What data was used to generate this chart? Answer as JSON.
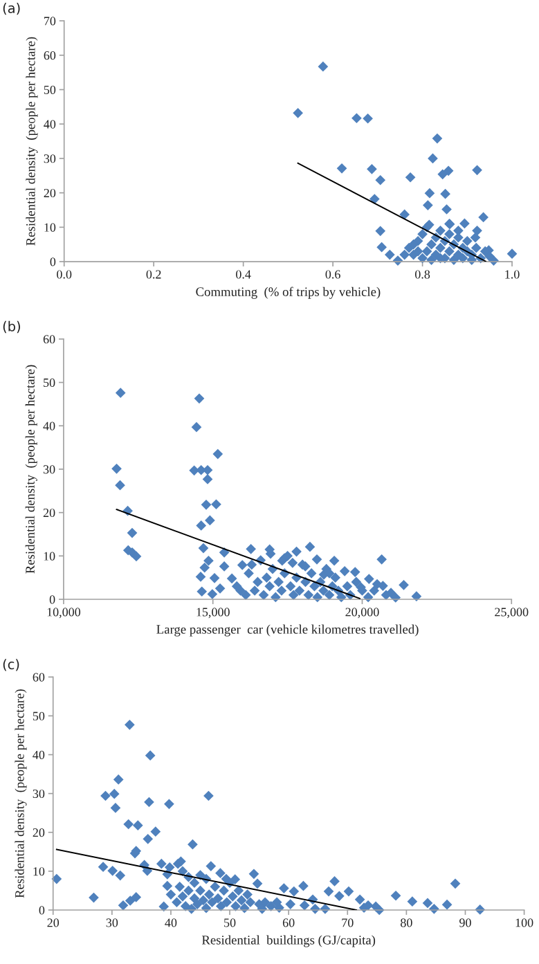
{
  "chart_data": [
    {
      "type": "scatter",
      "title": "(a)",
      "xlabel": "Commuting  (% of trips by vehicle)",
      "ylabel": "Residential density  (people per hectare)",
      "xlim": [
        0,
        1
      ],
      "xticks": [
        {
          "value": 0,
          "label": "0.0"
        },
        {
          "value": 0.2,
          "label": "0.2"
        },
        {
          "value": 0.4,
          "label": "0.4"
        },
        {
          "value": 0.6,
          "label": "0.6"
        },
        {
          "value": 0.8,
          "label": "0.8"
        },
        {
          "value": 1,
          "label": "1.0"
        }
      ],
      "ylim": [
        0,
        70
      ],
      "yticks": [
        0,
        10,
        20,
        30,
        40,
        50,
        60,
        70
      ],
      "grid": false,
      "series": [
        {
          "marker": "diamond",
          "color": "#4f81bd",
          "x": [
            0.578,
            0.522,
            0.653,
            0.678,
            0.833,
            0.823,
            0.62,
            0.687,
            0.706,
            0.773,
            0.845,
            0.858,
            0.922,
            0.693,
            0.816,
            0.851,
            0.812,
            0.854,
            0.76,
            0.936,
            0.706,
            0.709,
            0.727,
            0.745,
            1.0,
            0.815,
            0.861,
            0.894,
            0.922,
            0.918,
            0.959,
            0.948,
            0.77,
            0.78,
            0.79,
            0.8,
            0.8,
            0.81,
            0.82,
            0.82,
            0.83,
            0.83,
            0.84,
            0.84,
            0.85,
            0.85,
            0.86,
            0.86,
            0.87,
            0.87,
            0.88,
            0.88,
            0.89,
            0.89,
            0.9,
            0.9,
            0.91,
            0.91,
            0.92,
            0.93,
            0.94,
            0.95,
            0.79,
            0.81,
            0.76,
            0.78,
            0.84,
            0.86,
            0.88
          ],
          "values": [
            56.7,
            43.2,
            41.7,
            41.6,
            35.8,
            30.0,
            27.1,
            26.9,
            23.7,
            24.5,
            25.4,
            26.4,
            26.6,
            18.2,
            19.9,
            19.7,
            16.4,
            15.2,
            13.7,
            12.9,
            8.9,
            4.2,
            2.0,
            0.3,
            2.3,
            10.7,
            10.9,
            11.1,
            9.0,
            7.0,
            0.3,
            3.3,
            4,
            2,
            6,
            1,
            8,
            3,
            5,
            0.5,
            7,
            2,
            4,
            9,
            1,
            6,
            3,
            8,
            0.5,
            5,
            2,
            7,
            4,
            1,
            3,
            6,
            0.5,
            2,
            4,
            1,
            3,
            1.5,
            3,
            10,
            2,
            5,
            1,
            11,
            9
          ]
        },
        {
          "type": "line",
          "marker": "none",
          "color": "#000000",
          "x": [
            0.522,
            0.941
          ],
          "values": [
            28.6,
            0.1
          ]
        }
      ]
    },
    {
      "type": "scatter",
      "title": "(b)",
      "xlabel": "Large passenger  car (vehicle kilometres travelled)",
      "ylabel": "Residential density  (people per hectare)",
      "xlim": [
        10000,
        25000
      ],
      "xticks": [
        {
          "value": 10000,
          "label": "10,000"
        },
        {
          "value": 15000,
          "label": "15,000"
        },
        {
          "value": 20000,
          "label": "20,000"
        },
        {
          "value": 25000,
          "label": "25,000"
        }
      ],
      "ylim": [
        0,
        60
      ],
      "yticks": [
        0,
        10,
        20,
        30,
        40,
        50,
        60
      ],
      "grid": false,
      "series": [
        {
          "marker": "diamond",
          "color": "#4f81bd",
          "x": [
            11907,
            11775,
            11891,
            12147,
            12296,
            12163,
            12296,
            12435,
            14543,
            14450,
            15164,
            14373,
            14606,
            14822,
            14822,
            14775,
            15110,
            14900,
            14606,
            14682,
            15380,
            14854,
            14722,
            14590,
            15054,
            15380,
            15636,
            14630,
            14980,
            15240,
            15924,
            15985,
            16273,
            16931,
            17320,
            18250,
            20653,
            19064,
            18483,
            19762,
            19413,
            20228,
            21391,
            21817,
            20963,
            20693,
            19955,
            21118,
            17668,
            17397,
            18095,
            18715,
            15800,
            16100,
            16200,
            16400,
            16500,
            16600,
            16700,
            16800,
            16900,
            17000,
            17100,
            17200,
            17300,
            17400,
            17500,
            17600,
            17700,
            17800,
            17900,
            18000,
            18100,
            18200,
            18300,
            18400,
            18500,
            18600,
            18700,
            18800,
            18900,
            19000,
            19100,
            19200,
            19300,
            19500,
            19600,
            19800,
            20000,
            20200,
            20400,
            20800,
            16300,
            17800,
            16900,
            18900,
            20500
          ],
          "values": [
            47.6,
            30.1,
            26.3,
            20.4,
            15.3,
            11.3,
            10.8,
            9.9,
            46.3,
            39.7,
            33.5,
            29.7,
            29.8,
            29.8,
            27.7,
            21.8,
            21.9,
            18.2,
            17.0,
            11.8,
            10.8,
            8.9,
            7.3,
            5.2,
            4.9,
            7.6,
            4.8,
            1.8,
            1.2,
            2.5,
            2.0,
            7.9,
            11.6,
            10.5,
            8.9,
            12.1,
            9.2,
            8.9,
            9.2,
            6.3,
            6.5,
            4.7,
            3.3,
            0.7,
            1.5,
            3.1,
            2.8,
            0.4,
            8.4,
            9.5,
            7.6,
            5.7,
            3,
            1,
            6,
            2,
            4,
            9,
            1,
            5,
            3,
            7,
            0.5,
            4,
            2,
            6,
            10,
            3,
            1,
            5,
            2,
            8,
            4,
            1,
            6,
            3,
            0.5,
            4,
            2,
            7,
            1,
            3,
            5,
            2,
            0.5,
            3,
            1,
            4,
            2,
            0.5,
            2,
            1,
            8,
            11,
            11.5,
            6,
            3.5
          ]
        },
        {
          "type": "line",
          "marker": "none",
          "color": "#000000",
          "x": [
            11775,
            19917
          ],
          "values": [
            20.7,
            0.2
          ]
        }
      ]
    },
    {
      "type": "scatter",
      "title": "(c)",
      "xlabel": "Residential  buildings (GJ/capita)",
      "ylabel": "Residential density  (people per hectare)",
      "xlim": [
        20,
        100
      ],
      "xticks": [
        20,
        30,
        40,
        50,
        60,
        70,
        80,
        90,
        100
      ],
      "ylim": [
        0,
        60
      ],
      "yticks": [
        0,
        10,
        20,
        30,
        40,
        50,
        60
      ],
      "grid": false,
      "series": [
        {
          "marker": "diamond",
          "color": "#4f81bd",
          "x": [
            20.6,
            26.9,
            33.0,
            36.5,
            31.1,
            28.9,
            30.4,
            30.6,
            36.3,
            39.7,
            46.4,
            32.8,
            34.4,
            37.4,
            36.1,
            43.7,
            34.1,
            33.9,
            28.5,
            30.1,
            31.4,
            35.5,
            36.0,
            38.4,
            39.4,
            39.8,
            41.2,
            41.7,
            46.8,
            31.9,
            33.1,
            34.1,
            38.8,
            39.4,
            50.9,
            54.1,
            54.7,
            48.4,
            49.4,
            67.8,
            88.3,
            78.2,
            81.0,
            83.6,
            84.7,
            86.9,
            92.5,
            70.2,
            72.1,
            72.8,
            73.5,
            74.8,
            75.4,
            62.5,
            59.2,
            60.9,
            66.8,
            68.6,
            64.1,
            60.3,
            62.7,
            64.5,
            66.2,
            58.4,
            40,
            41,
            41.5,
            42,
            42.5,
            43,
            43.5,
            44,
            44,
            44.5,
            45,
            45.5,
            46,
            46,
            46.5,
            47,
            47.5,
            48,
            48.5,
            49,
            49.5,
            50,
            50.5,
            51,
            51.5,
            52,
            52.5,
            53,
            53.5,
            55,
            55.5,
            56,
            57,
            58,
            45,
            42,
            43
          ],
          "values": [
            8.0,
            3.2,
            47.7,
            39.8,
            33.6,
            29.4,
            29.9,
            26.3,
            27.8,
            27.3,
            29.4,
            22.1,
            21.8,
            20.2,
            18.3,
            16.9,
            15.2,
            14.6,
            11.1,
            10.1,
            8.9,
            11.6,
            10.1,
            11.9,
            9.2,
            11.0,
            11.9,
            12.5,
            11.3,
            1.2,
            2.4,
            3.3,
            0.9,
            6.2,
            7.9,
            9.3,
            6.8,
            9.5,
            8.0,
            7.4,
            6.8,
            3.7,
            2.2,
            1.8,
            0.3,
            1.4,
            0.1,
            4.8,
            2.7,
            0.6,
            1.2,
            0.9,
            0,
            6.2,
            5.6,
            4.8,
            4.8,
            3.6,
            2.7,
            1.5,
            1.2,
            0.3,
            0.3,
            0.6,
            4,
            2,
            6,
            3.5,
            1,
            5,
            0.3,
            7,
            3,
            1.5,
            5,
            2.5,
            8,
            0.5,
            4,
            2,
            6,
            3,
            1,
            5,
            2,
            7,
            3.5,
            1,
            5,
            2.5,
            0.5,
            4,
            2,
            1.5,
            0.3,
            2,
            1,
            2,
            9,
            10,
            8.5
          ]
        },
        {
          "type": "line",
          "marker": "none",
          "color": "#000000",
          "x": [
            20.6,
            71.5
          ],
          "values": [
            15.6,
            0
          ]
        }
      ]
    }
  ]
}
